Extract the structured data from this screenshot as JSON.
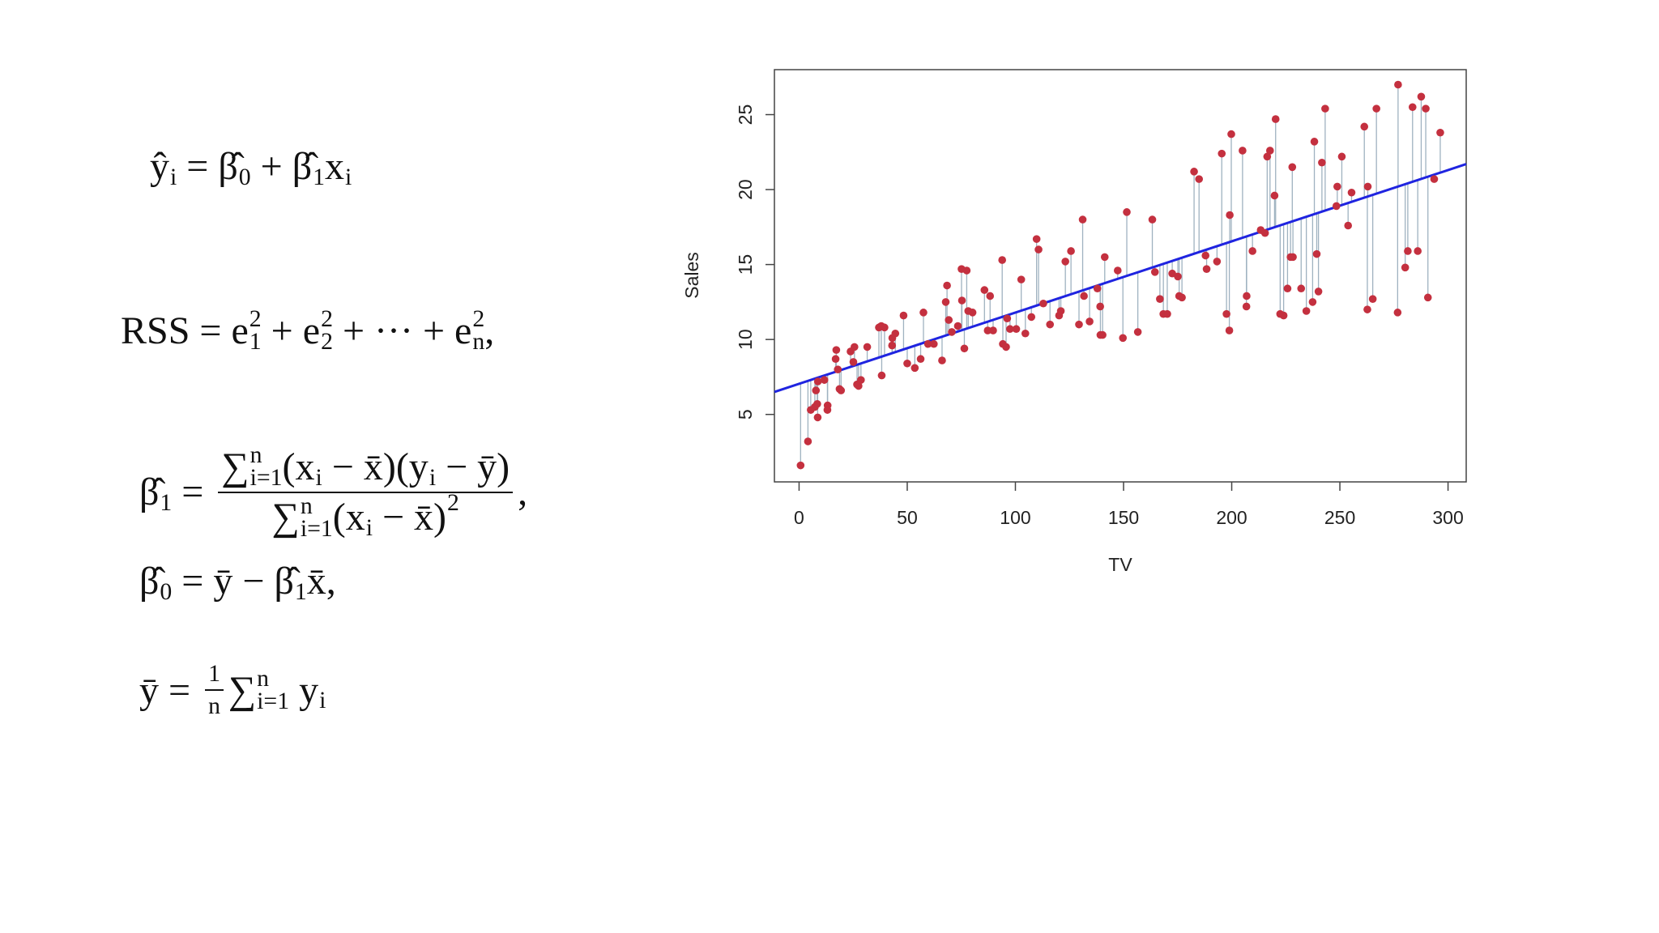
{
  "formulas": [
    [
      {
        "t": "ŷ",
        "sub": "i"
      },
      {
        "t": " = "
      },
      {
        "t": "β̂",
        "sub": "0"
      },
      {
        "t": " + "
      },
      {
        "t": "β̂",
        "sub": "1"
      },
      {
        "t": "x",
        "sub": "i"
      }
    ],
    [
      {
        "t": "RSS = "
      },
      {
        "t": "e",
        "sup": "2",
        "sub": "1"
      },
      {
        "t": " + "
      },
      {
        "t": "e",
        "sup": "2",
        "sub": "2"
      },
      {
        "t": " + ··· + "
      },
      {
        "t": "e",
        "sup": "2",
        "sub": "n"
      },
      {
        "t": ","
      }
    ],
    [
      {
        "t": "β̂",
        "sub": "1"
      },
      {
        "t": " = "
      },
      {
        "num": [
          {
            "t": "∑",
            "sup": "n",
            "sub": "i=1"
          },
          {
            "t": "(x",
            "sub": "i"
          },
          {
            "t": " − x̄)(y",
            "sub": "i"
          },
          {
            "t": " − ȳ)"
          }
        ],
        "den": [
          {
            "t": "∑",
            "sup": "n",
            "sub": "i=1"
          },
          {
            "t": "(x",
            "sub": "i"
          },
          {
            "t": " − x̄)",
            "sup": "2"
          }
        ]
      },
      {
        "t": ","
      }
    ],
    [
      {
        "t": "β̂",
        "sub": "0"
      },
      {
        "t": " = ȳ − "
      },
      {
        "t": "β̂",
        "sub": "1"
      },
      {
        "t": "x̄,"
      }
    ],
    [
      {
        "t": "ȳ = "
      },
      {
        "num": [
          {
            "t": "1"
          }
        ],
        "den": [
          {
            "t": "n"
          }
        ]
      },
      {
        "t": "∑",
        "sup": "n",
        "sub": "i=1"
      },
      {
        "t": " y",
        "sub": "i"
      }
    ]
  ],
  "chart_data": {
    "type": "scatter",
    "x_label": "TV",
    "y_label": "Sales",
    "xlim": [
      -11.4,
      308.4
    ],
    "ylim": [
      0.5,
      28
    ],
    "xticks": [
      0,
      50,
      100,
      150,
      200,
      250,
      300
    ],
    "yticks": [
      5,
      10,
      15,
      20,
      25
    ],
    "color": "#c4303f",
    "residual_color": "#9fb2c0",
    "x": [
      0.7,
      4.1,
      5.4,
      7.3,
      7.8,
      8.4,
      8.6,
      8.7,
      11.7,
      13.1,
      13.2,
      16.9,
      17.2,
      17.9,
      18.7,
      19.4,
      23.8,
      25.1,
      25.6,
      26.8,
      27.5,
      28.6,
      31.5,
      36.9,
      38.2,
      38.0,
      39.5,
      43.0,
      43.1,
      44.5,
      48.3,
      50,
      53.5,
      56.2,
      57.5,
      59.6,
      62.3,
      66.1,
      67.8,
      68.4,
      69.2,
      70.6,
      73.4,
      75.1,
      75.3,
      76.4,
      77.5,
      78.2,
      80.2,
      85.7,
      87.2,
      88.3,
      89.7,
      93.9,
      94.2,
      95.7,
      96.2,
      97.5,
      100.4,
      102.7,
      104.6,
      107.4,
      109.8,
      110.7,
      112.9,
      116,
      120.2,
      121,
      123.1,
      125.7,
      129.4,
      131.1,
      131.7,
      134.3,
      137.9,
      139.2,
      139.3,
      140.3,
      141.3,
      147.3,
      149.7,
      151.5,
      156.6,
      163.3,
      164.5,
      166.8,
      168.4,
      170.2,
      172.5,
      175.1,
      175.7,
      177,
      182.6,
      184.9,
      187.9,
      188.4,
      193.2,
      195.4,
      197.6,
      198.9,
      199.1,
      199.8,
      205,
      206.8,
      206.9,
      209.6,
      213.4,
      215.4,
      216.4,
      217.7,
      219.8,
      220.3,
      222.4,
      224,
      225.8,
      227.2,
      228,
      228.3,
      232.1,
      234.5,
      237.4,
      238.2,
      239.3,
      240.1,
      241.7,
      243.2,
      248.4,
      248.8,
      250.9,
      253.8,
      255.4,
      261.3,
      262.7,
      262.9,
      265.2,
      266.9,
      276.7,
      276.9,
      280.2,
      281.4,
      283.6,
      286,
      287.6,
      289.7,
      290.7,
      293.6,
      296.4
    ],
    "values": [
      1.6,
      3.2,
      5.3,
      5.5,
      6.6,
      5.7,
      4.8,
      7.2,
      7.3,
      5.3,
      5.6,
      8.7,
      9.3,
      8.0,
      6.7,
      6.6,
      9.2,
      8.5,
      9.5,
      7.0,
      6.9,
      7.3,
      9.5,
      10.8,
      7.6,
      10.9,
      10.8,
      9.6,
      10.1,
      10.4,
      11.6,
      8.4,
      8.1,
      8.7,
      11.8,
      9.7,
      9.7,
      8.6,
      12.5,
      13.6,
      11.3,
      10.5,
      10.9,
      14.7,
      12.6,
      9.4,
      14.6,
      11.9,
      11.8,
      13.3,
      10.6,
      12.9,
      10.6,
      15.3,
      9.7,
      9.5,
      11.4,
      10.7,
      10.7,
      14.0,
      10.4,
      11.5,
      16.7,
      16.0,
      12.4,
      11.0,
      11.6,
      11.9,
      15.2,
      15.9,
      11.0,
      18.0,
      12.9,
      11.2,
      13.4,
      12.2,
      10.3,
      10.3,
      15.5,
      14.6,
      10.1,
      18.5,
      10.5,
      18.0,
      14.5,
      12.7,
      11.7,
      11.7,
      14.4,
      14.2,
      12.9,
      12.8,
      21.2,
      20.7,
      15.6,
      14.7,
      15.2,
      22.4,
      11.7,
      10.6,
      18.3,
      23.7,
      22.6,
      12.2,
      12.9,
      15.9,
      17.3,
      17.1,
      22.2,
      22.6,
      19.6,
      24.7,
      11.7,
      11.6,
      13.4,
      15.5,
      21.5,
      15.5,
      13.4,
      11.9,
      12.5,
      23.2,
      15.7,
      13.2,
      21.8,
      25.4,
      18.9,
      20.2,
      22.2,
      17.6,
      19.8,
      24.2,
      12.0,
      20.2,
      12.7,
      25.4,
      11.8,
      27.0,
      14.8,
      15.9,
      25.5,
      15.9,
      26.2,
      25.4,
      12.8,
      20.7,
      23.8
    ],
    "fit_line": {
      "x": [
        -11.4,
        308.4
      ],
      "y": [
        6.5,
        21.7
      ],
      "color": "#1f24e0"
    }
  }
}
